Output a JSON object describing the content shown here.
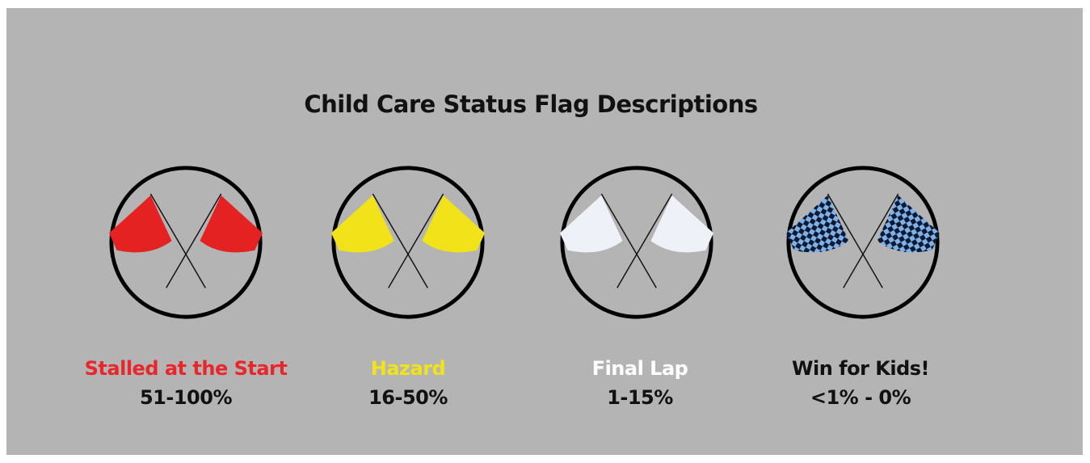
{
  "title": "Child Care Status Flag Descriptions",
  "flags": [
    {
      "label": "Stalled at the Start",
      "range": "51-100%"
    },
    {
      "label": "Hazard",
      "range": "16-50%"
    },
    {
      "label": "Final Lap",
      "range": "1-15%"
    },
    {
      "label": "Win for Kids!",
      "range": "<1% - 0%"
    }
  ]
}
